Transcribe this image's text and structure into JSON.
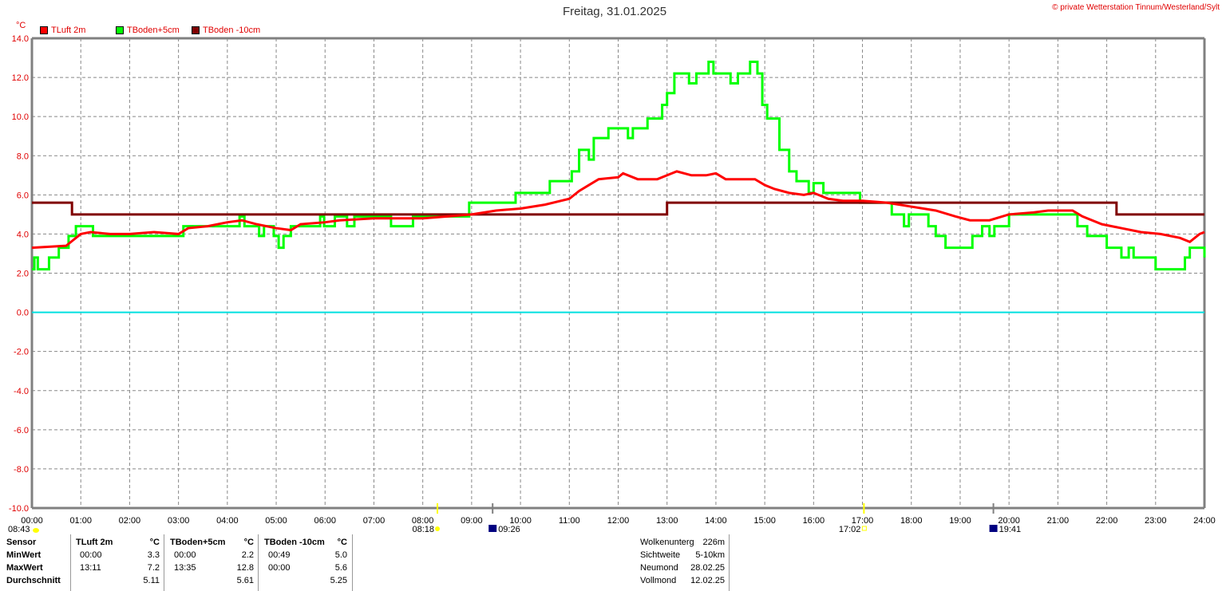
{
  "header": {
    "title": "Freitag, 31.01.2025",
    "copyright": "© private Wetterstation Tinnum/Westerland/Sylt",
    "unit": "°C"
  },
  "colors": {
    "tluft": "#ff0000",
    "tboden5": "#00ff00",
    "tboden10": "#800000",
    "zero": "#00e0e0"
  },
  "chart_data": {
    "type": "line",
    "title": "Freitag, 31.01.2025",
    "ylabel": "°C",
    "xlabel": "",
    "ylim": [
      -10,
      14
    ],
    "xlim": [
      0,
      24
    ],
    "grid": true,
    "legend_placement": "top-left",
    "yticks": [
      "14.0",
      "12.0",
      "10.0",
      "8.0",
      "6.0",
      "4.0",
      "2.0",
      "0.0",
      "-2.0",
      "-4.0",
      "-6.0",
      "-8.0",
      "-10.0"
    ],
    "ytick_values": [
      14,
      12,
      10,
      8,
      6,
      4,
      2,
      0,
      -2,
      -4,
      -6,
      -8,
      -10
    ],
    "xticks": [
      "00:00",
      "01:00",
      "02:00",
      "03:00",
      "04:00",
      "05:00",
      "06:00",
      "07:00",
      "08:00",
      "09:00",
      "10:00",
      "11:00",
      "12:00",
      "13:00",
      "14:00",
      "15:00",
      "16:00",
      "17:00",
      "18:00",
      "19:00",
      "20:00",
      "21:00",
      "22:00",
      "23:00",
      "24:00"
    ],
    "series": [
      {
        "name": "TLuft 2m",
        "color": "#ff0000",
        "step": false,
        "points": [
          [
            0,
            3.3
          ],
          [
            0.7,
            3.4
          ],
          [
            0.8,
            3.6
          ],
          [
            1.0,
            4.0
          ],
          [
            1.2,
            4.1
          ],
          [
            1.6,
            4.0
          ],
          [
            2.0,
            4.0
          ],
          [
            2.5,
            4.1
          ],
          [
            3.0,
            4.0
          ],
          [
            3.2,
            4.3
          ],
          [
            3.6,
            4.4
          ],
          [
            4.0,
            4.6
          ],
          [
            4.3,
            4.7
          ],
          [
            4.6,
            4.5
          ],
          [
            5.0,
            4.3
          ],
          [
            5.3,
            4.2
          ],
          [
            5.5,
            4.5
          ],
          [
            6.0,
            4.6
          ],
          [
            6.3,
            4.7
          ],
          [
            7.0,
            4.8
          ],
          [
            8.0,
            4.8
          ],
          [
            8.5,
            4.9
          ],
          [
            9.0,
            5.0
          ],
          [
            9.5,
            5.2
          ],
          [
            10.0,
            5.3
          ],
          [
            10.5,
            5.5
          ],
          [
            11.0,
            5.8
          ],
          [
            11.2,
            6.2
          ],
          [
            11.4,
            6.5
          ],
          [
            11.6,
            6.8
          ],
          [
            12.0,
            6.9
          ],
          [
            12.1,
            7.1
          ],
          [
            12.4,
            6.8
          ],
          [
            12.8,
            6.8
          ],
          [
            13.0,
            7.0
          ],
          [
            13.2,
            7.2
          ],
          [
            13.5,
            7.0
          ],
          [
            13.8,
            7.0
          ],
          [
            14.0,
            7.1
          ],
          [
            14.2,
            6.8
          ],
          [
            14.8,
            6.8
          ],
          [
            15.0,
            6.5
          ],
          [
            15.2,
            6.3
          ],
          [
            15.5,
            6.1
          ],
          [
            15.8,
            6.0
          ],
          [
            16.0,
            6.1
          ],
          [
            16.3,
            5.8
          ],
          [
            16.6,
            5.7
          ],
          [
            17.0,
            5.7
          ],
          [
            17.5,
            5.6
          ],
          [
            18.0,
            5.4
          ],
          [
            18.5,
            5.2
          ],
          [
            18.9,
            4.9
          ],
          [
            19.2,
            4.7
          ],
          [
            19.6,
            4.7
          ],
          [
            20.0,
            5.0
          ],
          [
            20.5,
            5.1
          ],
          [
            20.8,
            5.2
          ],
          [
            21.3,
            5.2
          ],
          [
            21.5,
            4.9
          ],
          [
            21.9,
            4.5
          ],
          [
            22.3,
            4.3
          ],
          [
            22.7,
            4.1
          ],
          [
            23.1,
            4.0
          ],
          [
            23.5,
            3.8
          ],
          [
            23.7,
            3.6
          ],
          [
            23.9,
            4.0
          ],
          [
            24.0,
            4.1
          ]
        ]
      },
      {
        "name": "TBoden+5cm",
        "color": "#00ff00",
        "step": true,
        "points": [
          [
            0,
            2.2
          ],
          [
            0.05,
            2.8
          ],
          [
            0.12,
            2.2
          ],
          [
            0.35,
            2.8
          ],
          [
            0.55,
            3.3
          ],
          [
            0.75,
            3.9
          ],
          [
            0.9,
            4.4
          ],
          [
            1.25,
            3.9
          ],
          [
            3.1,
            4.4
          ],
          [
            4.25,
            4.9
          ],
          [
            4.35,
            4.4
          ],
          [
            4.65,
            3.9
          ],
          [
            4.75,
            4.4
          ],
          [
            4.95,
            3.9
          ],
          [
            5.05,
            3.3
          ],
          [
            5.15,
            3.9
          ],
          [
            5.3,
            4.4
          ],
          [
            5.9,
            4.9
          ],
          [
            5.98,
            4.4
          ],
          [
            6.2,
            4.9
          ],
          [
            6.45,
            4.4
          ],
          [
            6.6,
            4.9
          ],
          [
            7.35,
            4.4
          ],
          [
            7.8,
            4.9
          ],
          [
            8.95,
            5.6
          ],
          [
            9.9,
            6.1
          ],
          [
            10.6,
            6.7
          ],
          [
            11.05,
            7.2
          ],
          [
            11.2,
            8.3
          ],
          [
            11.4,
            7.8
          ],
          [
            11.5,
            8.9
          ],
          [
            11.8,
            9.4
          ],
          [
            12.2,
            8.9
          ],
          [
            12.3,
            9.4
          ],
          [
            12.6,
            9.9
          ],
          [
            12.9,
            10.6
          ],
          [
            13.0,
            11.2
          ],
          [
            13.15,
            12.2
          ],
          [
            13.45,
            11.7
          ],
          [
            13.6,
            12.2
          ],
          [
            13.85,
            12.8
          ],
          [
            13.95,
            12.2
          ],
          [
            14.3,
            11.7
          ],
          [
            14.45,
            12.2
          ],
          [
            14.7,
            12.8
          ],
          [
            14.85,
            12.2
          ],
          [
            14.95,
            10.6
          ],
          [
            15.05,
            9.9
          ],
          [
            15.3,
            8.3
          ],
          [
            15.5,
            7.2
          ],
          [
            15.65,
            6.7
          ],
          [
            15.9,
            6.1
          ],
          [
            16.0,
            6.6
          ],
          [
            16.2,
            6.1
          ],
          [
            16.95,
            5.6
          ],
          [
            17.6,
            5.0
          ],
          [
            17.85,
            4.4
          ],
          [
            17.95,
            5.0
          ],
          [
            18.35,
            4.4
          ],
          [
            18.5,
            3.9
          ],
          [
            18.7,
            3.3
          ],
          [
            19.25,
            3.9
          ],
          [
            19.45,
            4.4
          ],
          [
            19.6,
            3.9
          ],
          [
            19.7,
            4.4
          ],
          [
            20.0,
            5.0
          ],
          [
            21.4,
            4.4
          ],
          [
            21.6,
            3.9
          ],
          [
            22.0,
            3.3
          ],
          [
            22.3,
            2.8
          ],
          [
            22.45,
            3.3
          ],
          [
            22.55,
            2.8
          ],
          [
            23.0,
            2.2
          ],
          [
            23.6,
            2.8
          ],
          [
            23.7,
            3.3
          ],
          [
            24.0,
            2.8
          ]
        ]
      },
      {
        "name": "TBoden -10cm",
        "color": "#800000",
        "step": true,
        "points": [
          [
            0,
            5.6
          ],
          [
            0.82,
            5.0
          ],
          [
            13.0,
            5.6
          ],
          [
            22.2,
            5.0
          ],
          [
            24,
            5.0
          ]
        ]
      }
    ]
  },
  "sun_moon": {
    "sunrise_label": "08:18",
    "sunset_label": "17:02",
    "moonrise_label": "09:26",
    "moonset_label": "19:41",
    "daylight_label": "08:43",
    "sunrise_hour": 8.3,
    "sunset_hour": 17.03,
    "moonrise_hour": 9.43,
    "moonset_hour": 19.68
  },
  "stats": {
    "header": [
      "Sensor",
      "TLuft 2m",
      "°C",
      "TBoden+5cm",
      "°C",
      "TBoden -10cm",
      "°C"
    ],
    "rows": [
      {
        "label": "MinWert",
        "t1": "00:00",
        "v1": "3.3",
        "t2": "00:00",
        "v2": "2.2",
        "t3": "00:49",
        "v3": "5.0"
      },
      {
        "label": "MaxWert",
        "t1": "13:11",
        "v1": "7.2",
        "t2": "13:35",
        "v2": "12.8",
        "t3": "00:00",
        "v3": "5.6"
      },
      {
        "label": "Durchschnitt",
        "t1": "",
        "v1": "5.11",
        "t2": "",
        "v2": "5.61",
        "t3": "",
        "v3": "5.25"
      }
    ]
  },
  "info": [
    {
      "label": "Wolkenunterg",
      "value": "226m"
    },
    {
      "label": "Sichtweite",
      "value": "5-10km"
    },
    {
      "label": "Neumond",
      "value": "28.02.25"
    },
    {
      "label": "Vollmond",
      "value": "12.02.25"
    }
  ]
}
